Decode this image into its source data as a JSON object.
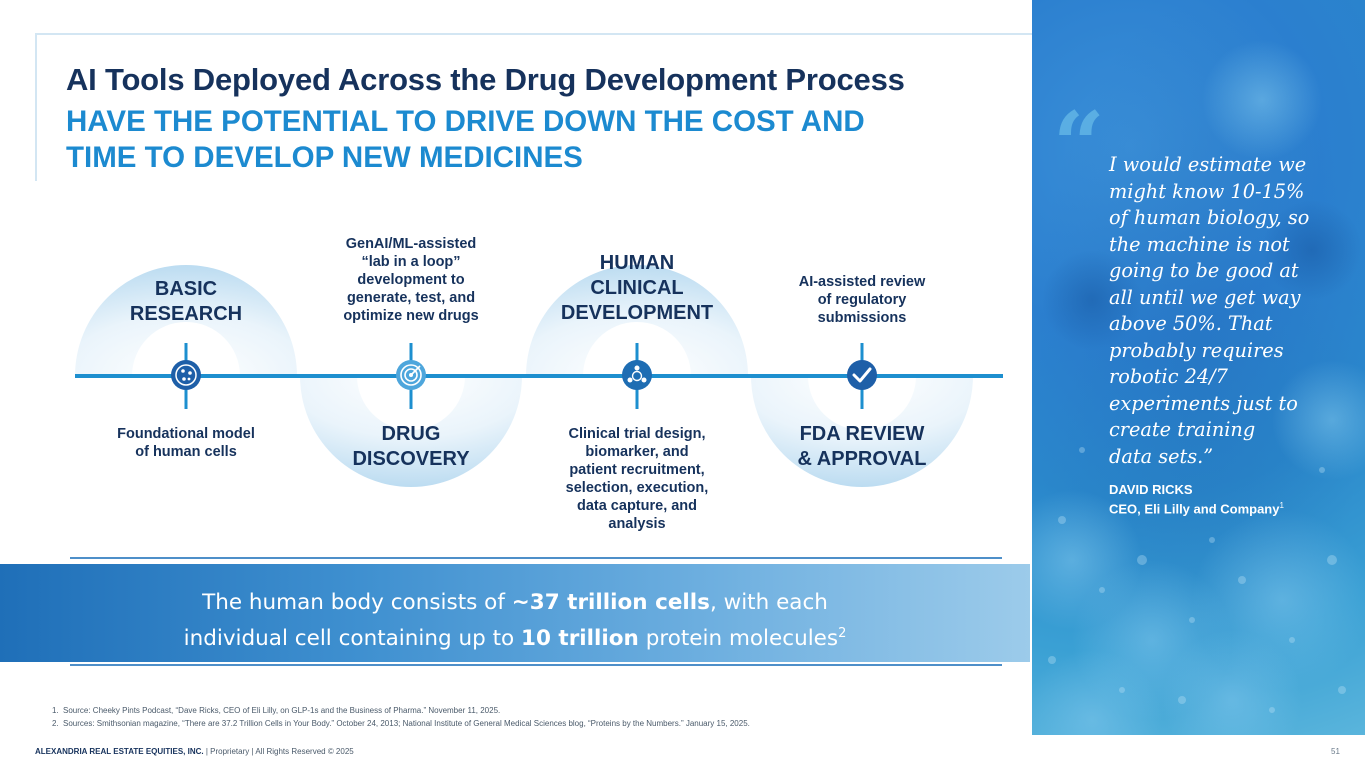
{
  "header": {
    "title": "AI Tools Deployed Across the Drug Development Process",
    "subtitle_lines": [
      "HAVE THE POTENTIAL TO DRIVE DOWN THE COST AND",
      "TIME TO DEVELOP NEW MEDICINES"
    ]
  },
  "process": {
    "stages": [
      {
        "name_lines": [
          "BASIC",
          "RESEARCH"
        ],
        "icon": "cell-network-icon",
        "description_lines": [
          "Foundational model",
          "of human cells"
        ]
      },
      {
        "name_lines": [
          "DRUG",
          "DISCOVERY"
        ],
        "icon": "target-icon",
        "description_lines": [
          "GenAI/ML-assisted",
          "“lab in a loop”",
          "development to",
          "generate, test, and",
          "optimize new drugs"
        ]
      },
      {
        "name_lines": [
          "HUMAN",
          "CLINICAL",
          "DEVELOPMENT"
        ],
        "icon": "people-cycle-icon",
        "description_lines": [
          "Clinical trial design,",
          "biomarker, and",
          "patient recruitment,",
          "selection, execution,",
          "data capture, and",
          "analysis"
        ]
      },
      {
        "name_lines": [
          "FDA REVIEW",
          "& APPROVAL"
        ],
        "icon": "checkmark-icon",
        "description_lines": [
          "AI-assisted review",
          "of regulatory",
          "submissions"
        ]
      }
    ]
  },
  "highlight": {
    "line1_pre": "The human body consists of ",
    "line1_bold": "~37 trillion cells",
    "line1_post": ", with each",
    "line2_pre": "individual cell containing up to ",
    "line2_bold": "10 trillion",
    "line2_post": " protein molecules",
    "line2_sup": "2"
  },
  "quote": {
    "mark": "“",
    "lines": [
      "I would estimate we",
      "might know 10-15%",
      "of human biology, so",
      "the machine is not",
      "going to be good at",
      "all until we get way",
      "above 50%. That",
      "probably requires",
      "robotic 24/7",
      "experiments just to",
      "create training",
      "data sets.”"
    ],
    "author": "DAVID RICKS",
    "role": "CEO, Eli Lilly and Company",
    "role_sup": "1"
  },
  "footnotes": [
    {
      "num": "1.",
      "text": "Source: Cheeky Pints Podcast, “Dave Ricks, CEO of Eli Lilly, on GLP-1s and the Business of Pharma.” November 11, 2025."
    },
    {
      "num": "2.",
      "text": "Sources: Smithsonian magazine, “There are 37.2 Trillion Cells in Your Body.” October 24, 2013; National Institute of General Medical Sciences blog, “Proteins by the Numbers.” January 15, 2025."
    }
  ],
  "footer": {
    "company": "ALEXANDRIA REAL ESTATE EQUITIES, INC.",
    "rights": " | Proprietary | All Rights Reserved © 2025",
    "page": "51"
  },
  "colors": {
    "navy": "#16325c",
    "accent_blue": "#1c8ad0",
    "timeline": "#1d8fcf"
  }
}
